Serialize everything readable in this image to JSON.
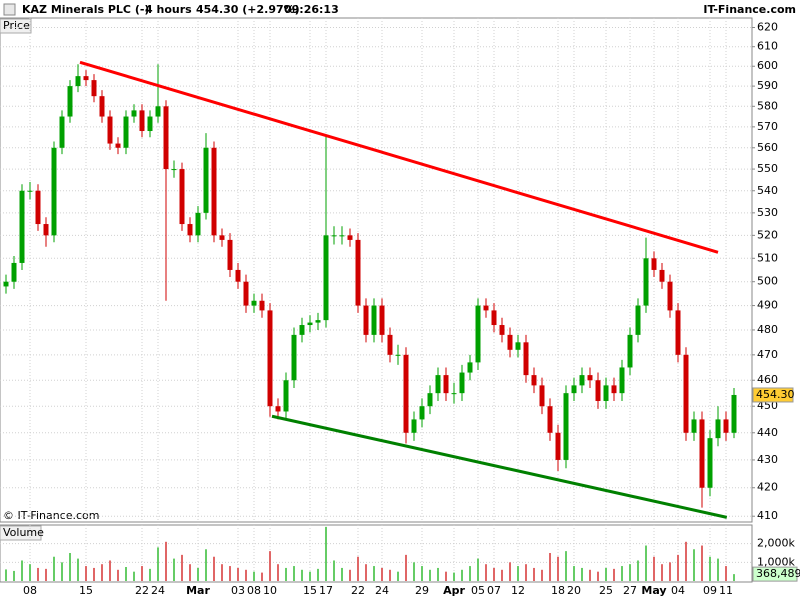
{
  "chart_data": {
    "type": "candlestick",
    "title": "KAZ Minerals PLC (-)",
    "interval": "4 hours",
    "quote": "454.30 (+2.97%)",
    "time": "09:26:13",
    "source": "IT-Finance.com",
    "copyright": "© IT-Finance.com",
    "price_label": "Price",
    "categories": [
      null,
      null,
      null,
      null,
      null,
      null,
      null,
      null,
      null,
      null,
      null,
      null,
      null,
      null,
      null,
      null,
      null,
      null,
      null,
      null,
      null,
      null,
      null,
      null,
      null,
      null,
      null,
      null,
      null,
      null,
      null,
      null,
      null,
      null,
      null,
      null,
      null,
      null,
      null,
      null,
      null,
      null,
      null,
      null,
      null,
      null,
      null,
      null,
      null,
      null,
      null,
      null,
      null,
      null,
      null,
      null,
      null,
      null,
      null,
      null,
      null,
      null,
      null,
      null,
      null,
      null,
      null,
      null,
      null,
      null,
      null,
      null,
      null,
      null,
      null,
      null,
      null,
      null,
      null,
      null,
      null,
      null,
      null,
      null,
      null,
      null,
      null,
      null,
      null,
      null,
      null,
      null
    ],
    "open": [
      498,
      500,
      508,
      540,
      540,
      525,
      520,
      560,
      575,
      590,
      595,
      593,
      585,
      575,
      562,
      560,
      575,
      578,
      568,
      575,
      580,
      550,
      550,
      525,
      520,
      530,
      560,
      520,
      518,
      505,
      500,
      490,
      492,
      488,
      450,
      448,
      460,
      478,
      482,
      483,
      484,
      520,
      520,
      520,
      518,
      490,
      478,
      490,
      478,
      470,
      470,
      440,
      445,
      450,
      455,
      462,
      455,
      455,
      463,
      467,
      490,
      488,
      482,
      478,
      472,
      475,
      462,
      458,
      450,
      440,
      430,
      455,
      458,
      462,
      460,
      452,
      458,
      455,
      465,
      478,
      490,
      510,
      505,
      500,
      488,
      470,
      440,
      445,
      420,
      438,
      445,
      440
    ],
    "high": [
      503,
      511,
      543,
      544,
      543,
      528,
      563,
      578,
      593,
      601,
      598,
      596,
      588,
      578,
      565,
      578,
      581,
      581,
      578,
      601,
      583,
      554,
      553,
      528,
      533,
      567,
      563,
      523,
      521,
      508,
      503,
      495,
      495,
      491,
      453,
      463,
      481,
      485,
      486,
      487,
      566,
      524,
      524,
      523,
      521,
      493,
      493,
      493,
      481,
      474,
      473,
      448,
      453,
      458,
      465,
      465,
      459,
      466,
      470,
      493,
      493,
      491,
      485,
      481,
      478,
      478,
      465,
      461,
      453,
      443,
      458,
      461,
      465,
      465,
      463,
      461,
      461,
      468,
      481,
      493,
      519,
      513,
      508,
      503,
      491,
      473,
      448,
      448,
      441,
      450,
      448,
      457
    ],
    "low": [
      495,
      497,
      505,
      536,
      522,
      515,
      517,
      557,
      572,
      587,
      590,
      582,
      572,
      559,
      557,
      557,
      572,
      565,
      565,
      572,
      492,
      546,
      522,
      517,
      517,
      527,
      517,
      515,
      502,
      497,
      487,
      487,
      485,
      446,
      445,
      445,
      457,
      475,
      479,
      480,
      481,
      516,
      516,
      515,
      487,
      475,
      475,
      475,
      467,
      466,
      436,
      437,
      442,
      447,
      452,
      452,
      451,
      452,
      460,
      464,
      485,
      479,
      475,
      469,
      469,
      459,
      455,
      447,
      437,
      426,
      427,
      452,
      455,
      457,
      449,
      449,
      452,
      452,
      462,
      475,
      487,
      502,
      497,
      485,
      467,
      437,
      437,
      413,
      417,
      435,
      437,
      438
    ],
    "close": [
      500,
      508,
      540,
      540,
      525,
      520,
      560,
      575,
      590,
      595,
      593,
      585,
      575,
      562,
      560,
      575,
      578,
      568,
      575,
      580,
      550,
      550,
      525,
      520,
      530,
      560,
      520,
      518,
      505,
      500,
      490,
      492,
      488,
      450,
      448,
      460,
      478,
      482,
      483,
      484,
      520,
      520,
      520,
      518,
      490,
      478,
      490,
      478,
      470,
      470,
      440,
      445,
      450,
      455,
      462,
      455,
      455,
      463,
      467,
      490,
      488,
      482,
      478,
      472,
      475,
      462,
      458,
      450,
      440,
      430,
      455,
      458,
      462,
      460,
      452,
      458,
      455,
      465,
      478,
      490,
      510,
      505,
      500,
      488,
      470,
      440,
      445,
      420,
      438,
      445,
      440,
      454.3
    ],
    "up_color": "#00a000",
    "down_color": "#d00000",
    "ylim": [
      408,
      625
    ],
    "ylog": true,
    "yticks": [
      410,
      420,
      430,
      440,
      450,
      460,
      470,
      480,
      490,
      500,
      510,
      520,
      530,
      540,
      550,
      560,
      570,
      580,
      590,
      600,
      610,
      620
    ],
    "grid": true,
    "last_price": {
      "value": 454.3,
      "label": "454.30"
    },
    "last_price_color": "#ffcc33",
    "xticks": [
      {
        "value": 3,
        "label": "08"
      },
      {
        "value": 10,
        "label": "15"
      },
      {
        "value": 17,
        "label": "22"
      },
      {
        "value": 19,
        "label": "24"
      },
      {
        "value": 24,
        "label": "Mar"
      },
      {
        "value": 29,
        "label": "03"
      },
      {
        "value": 31,
        "label": "08"
      },
      {
        "value": 33,
        "label": "10"
      },
      {
        "value": 38,
        "label": "15"
      },
      {
        "value": 40,
        "label": "17"
      },
      {
        "value": 44,
        "label": "22"
      },
      {
        "value": 47,
        "label": "24"
      },
      {
        "value": 52,
        "label": "29"
      },
      {
        "value": 56,
        "label": "Apr"
      },
      {
        "value": 59,
        "label": "05"
      },
      {
        "value": 61,
        "label": "07"
      },
      {
        "value": 64,
        "label": "12"
      },
      {
        "value": 69,
        "label": "18"
      },
      {
        "value": 71,
        "label": "20"
      },
      {
        "value": 75,
        "label": "25"
      },
      {
        "value": 78,
        "label": "27"
      },
      {
        "value": 81,
        "label": "May"
      },
      {
        "value": 84,
        "label": "04"
      },
      {
        "value": 88,
        "label": "09"
      },
      {
        "value": 90,
        "label": "11"
      }
    ],
    "trendlines": [
      {
        "color": "#ff0000",
        "x": [
          9.25,
          89
        ],
        "y": [
          602,
          512.6
        ]
      },
      {
        "color": "#008000",
        "x": [
          33.25,
          90.1
        ],
        "y": [
          446.2,
          409.6
        ]
      }
    ],
    "volume": {
      "label": "Volume",
      "values": [
        620000,
        540000,
        1100000,
        900000,
        700000,
        650000,
        1300000,
        1000000,
        1500000,
        1200000,
        800000,
        700000,
        900000,
        1100000,
        600000,
        750000,
        500000,
        800000,
        650000,
        1800000,
        2100000,
        1200000,
        1400000,
        900000,
        700000,
        1700000,
        1300000,
        900000,
        800000,
        700000,
        600000,
        500000,
        450000,
        1600000,
        900000,
        700000,
        800000,
        600000,
        500000,
        650000,
        2900000,
        1100000,
        700000,
        600000,
        1300000,
        900000,
        800000,
        700000,
        600000,
        500000,
        1400000,
        1000000,
        800000,
        600000,
        700000,
        500000,
        450000,
        600000,
        800000,
        1200000,
        900000,
        700000,
        600000,
        1000000,
        800000,
        900000,
        700000,
        600000,
        1500000,
        1300000,
        1600000,
        800000,
        700000,
        600000,
        500000,
        700000,
        650000,
        800000,
        900000,
        1100000,
        1900000,
        1300000,
        900000,
        1000000,
        1400000,
        2100000,
        1700000,
        1900000,
        1300000,
        1200000,
        800000,
        368489
      ],
      "ylim": [
        0,
        3000000
      ],
      "yticks": [
        {
          "value": 1000000,
          "label": "1,000k"
        },
        {
          "value": 2000000,
          "label": "2,000k"
        }
      ],
      "last": {
        "value": 368489,
        "label": "368,489"
      },
      "last_color": "#ccffcc"
    }
  }
}
